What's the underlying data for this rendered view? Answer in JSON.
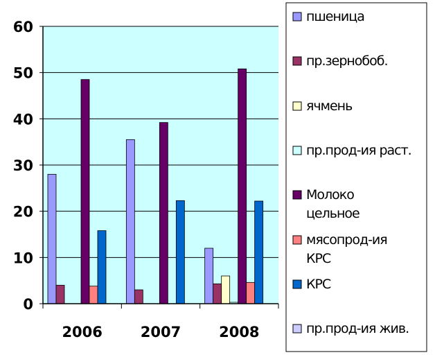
{
  "chart_data": {
    "type": "bar",
    "categories": [
      "2006",
      "2007",
      "2008"
    ],
    "ylim": [
      0,
      60
    ],
    "yticks": [
      0,
      10,
      20,
      30,
      40,
      50,
      60
    ],
    "grid": true,
    "legend_position": "right",
    "plot_background": "#ccffff",
    "series": [
      {
        "name": "пшеница",
        "color": "#9999ff",
        "values": [
          28,
          35.5,
          12
        ]
      },
      {
        "name": "пр.зернобоб.",
        "color": "#993366",
        "values": [
          4,
          3,
          4.3
        ]
      },
      {
        "name": "ячмень",
        "color": "#ffffcc",
        "values": [
          0,
          0,
          6
        ]
      },
      {
        "name": "пр.прод-ия раст.",
        "color": "#ccffff",
        "values": [
          0,
          0,
          0.3
        ]
      },
      {
        "name": "Молоко цельное",
        "name_lines": [
          "Молоко",
          "цельное"
        ],
        "color": "#660066",
        "values": [
          48.5,
          39.2,
          50.8
        ]
      },
      {
        "name": "мясопрод-ия КРС",
        "name_lines": [
          "мясопрод-ия",
          "КРС"
        ],
        "color": "#ff8080",
        "values": [
          3.8,
          0,
          4.6
        ]
      },
      {
        "name": "КРС",
        "color": "#0066cc",
        "values": [
          15.8,
          22.3,
          22.2
        ]
      },
      {
        "name": "пр.прод-ия жив.",
        "color": "#ccccff",
        "values": [
          0,
          0,
          0
        ]
      }
    ]
  }
}
